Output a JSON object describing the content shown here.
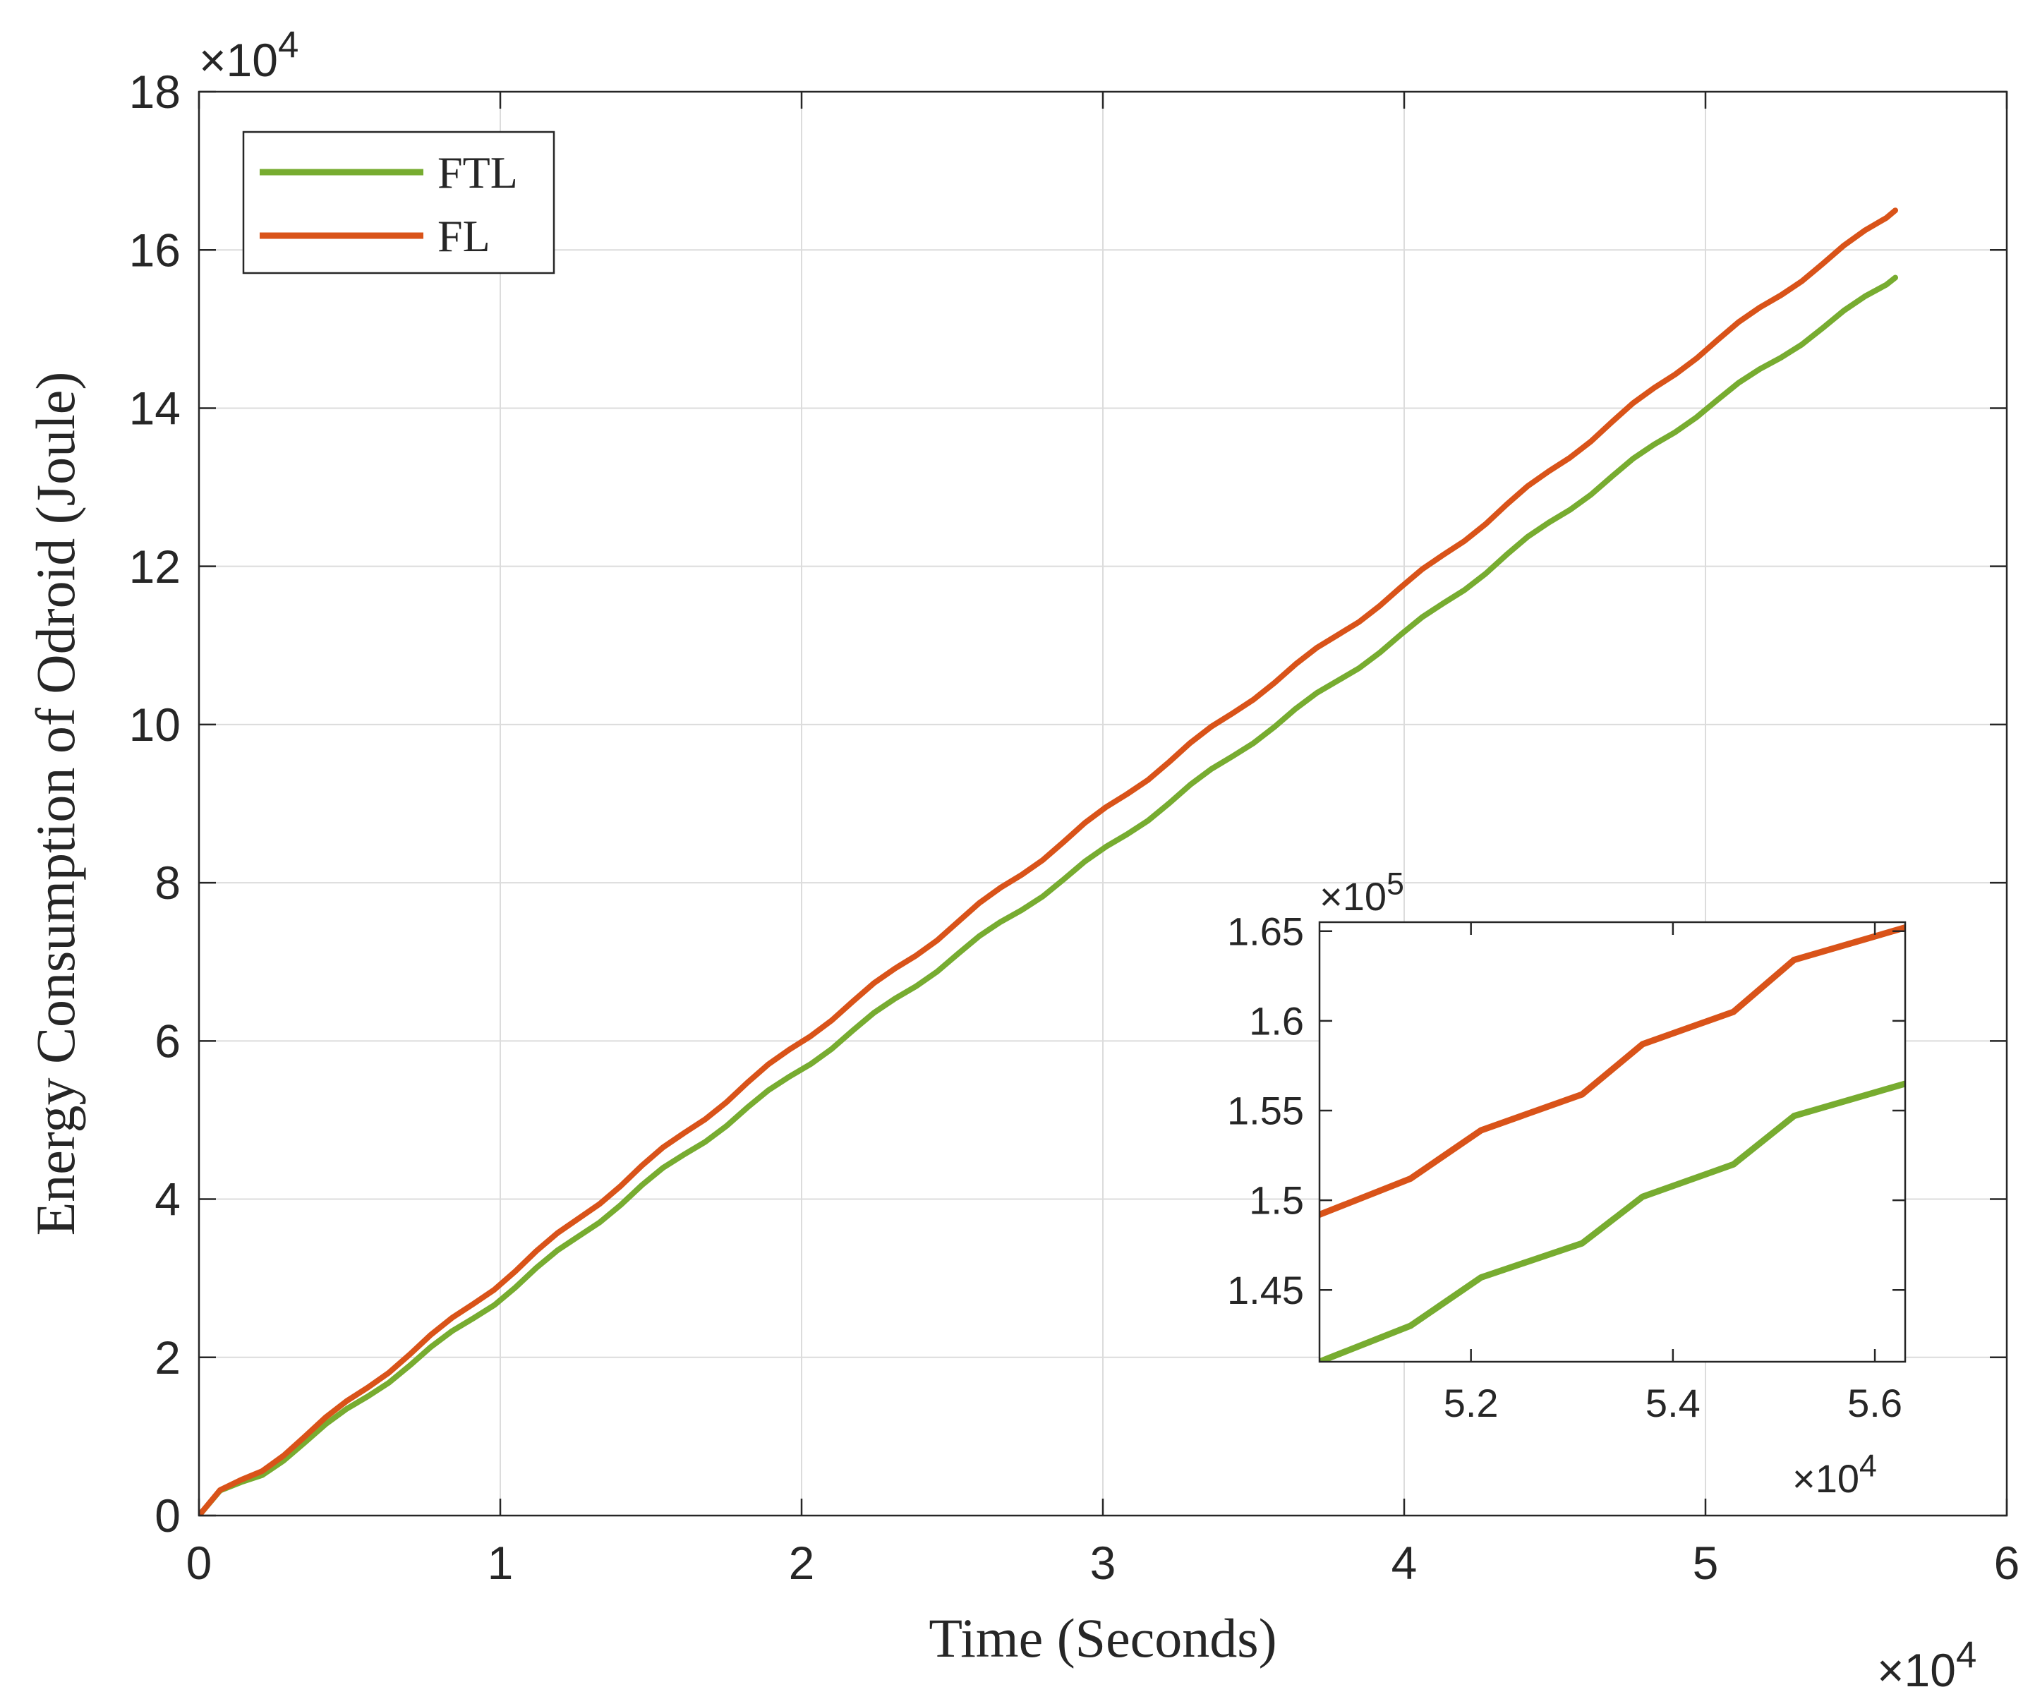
{
  "chart_data": [
    {
      "type": "line",
      "id": "main",
      "title": "",
      "xlabel": "Time (Seconds)",
      "ylabel": "Energy Consumption of Odroid (Joule)",
      "xlim": [
        0,
        60000
      ],
      "ylim": [
        0,
        180000
      ],
      "x_ticks": [
        0,
        10000,
        20000,
        30000,
        40000,
        50000,
        60000
      ],
      "x_tick_labels": [
        "0",
        "1",
        "2",
        "3",
        "4",
        "5",
        "6"
      ],
      "y_ticks": [
        0,
        20000,
        40000,
        60000,
        80000,
        100000,
        120000,
        140000,
        160000,
        180000
      ],
      "y_tick_labels": [
        "0",
        "2",
        "4",
        "6",
        "8",
        "10",
        "12",
        "14",
        "16",
        "18"
      ],
      "x_exponent": {
        "base": "×10",
        "power": "4"
      },
      "y_exponent": {
        "base": "×10",
        "power": "4"
      },
      "grid": true,
      "legend_position": "top-left",
      "series": [
        {
          "name": "FTL",
          "color": "#77AC30",
          "x": [
            0,
            500,
            2000,
            5000,
            10000,
            15000,
            20000,
            25000,
            30000,
            35000,
            40000,
            45000,
            50000,
            56300
          ],
          "y": [
            0,
            2500,
            5000,
            13500,
            27500,
            42500,
            56500,
            70500,
            84000,
            98000,
            111500,
            126000,
            140000,
            156500
          ]
        },
        {
          "name": "FL",
          "color": "#D95319",
          "x": [
            0,
            500,
            2000,
            5000,
            10000,
            15000,
            20000,
            25000,
            30000,
            35000,
            40000,
            45000,
            50000,
            56300
          ],
          "y": [
            0,
            2500,
            5500,
            14500,
            29500,
            45000,
            60000,
            74500,
            89000,
            103500,
            117500,
            132500,
            147500,
            165000
          ]
        }
      ]
    },
    {
      "type": "line",
      "id": "inset",
      "title": "",
      "xlabel": "",
      "ylabel": "",
      "xlim": [
        50500,
        56300
      ],
      "ylim": [
        141000,
        165500
      ],
      "x_ticks": [
        52000,
        54000,
        56000
      ],
      "x_tick_labels": [
        "5.2",
        "5.4",
        "5.6"
      ],
      "y_ticks": [
        145000,
        150000,
        155000,
        160000,
        165000
      ],
      "y_tick_labels": [
        "1.45",
        "1.5",
        "1.55",
        "1.6",
        "1.65"
      ],
      "x_exponent": {
        "base": "×10",
        "power": "4"
      },
      "y_exponent": {
        "base": "×10",
        "power": "5"
      },
      "grid": false,
      "series": [
        {
          "name": "FTL",
          "color": "#77AC30",
          "x": [
            50500,
            51400,
            52100,
            53100,
            53700,
            54600,
            55200,
            56300
          ],
          "y": [
            141000,
            143000,
            145700,
            147600,
            150200,
            152000,
            154700,
            156500
          ]
        },
        {
          "name": "FL",
          "color": "#D95319",
          "x": [
            50500,
            51400,
            52100,
            53100,
            53700,
            54600,
            55200,
            56300
          ],
          "y": [
            149200,
            151200,
            153900,
            155900,
            158700,
            160500,
            163400,
            165200
          ]
        }
      ]
    }
  ]
}
